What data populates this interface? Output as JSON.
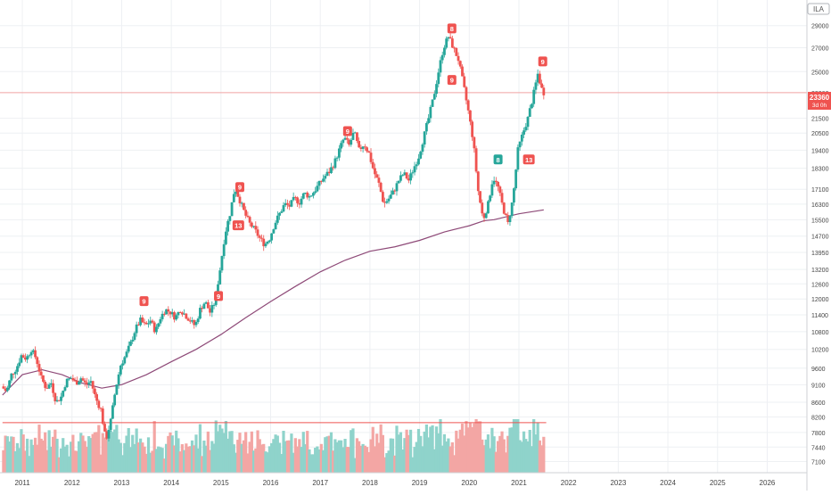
{
  "symbol": "ILA",
  "price_label": {
    "price": "23360",
    "countdown": "3d 0h"
  },
  "colors": {
    "up": "#26a69a",
    "down": "#ef5350",
    "ma": "#8e4a78",
    "grid": "#eef0f3",
    "axis_text": "#444444",
    "tick_line": "#9e9e9e"
  },
  "chart_data": {
    "type": "candlestick",
    "title": "",
    "x_axis": {
      "tick_labels": [
        "2011",
        "2012",
        "2013",
        "2014",
        "2015",
        "2016",
        "2017",
        "2018",
        "2019",
        "2020",
        "2021",
        "2022",
        "2023",
        "2024",
        "2025",
        "2026"
      ],
      "range": [
        2010.55,
        2026.8
      ]
    },
    "y_axis": {
      "scale": "log",
      "tick_labels": [
        "29000",
        "27000",
        "25000",
        "23360",
        "21500",
        "20500",
        "19400",
        "18300",
        "17100",
        "16300",
        "15500",
        "14700",
        "13950",
        "13200",
        "12600",
        "12000",
        "11400",
        "10800",
        "10200",
        "9600",
        "9100",
        "8600",
        "8200",
        "7800",
        "7440",
        "7100"
      ],
      "range": [
        6850,
        31500
      ]
    },
    "last_price": 23360,
    "support_line": 8050,
    "price_path": [
      [
        2010.6,
        9050
      ],
      [
        2010.7,
        8900
      ],
      [
        2010.8,
        9400
      ],
      [
        2010.9,
        9600
      ],
      [
        2011.0,
        10000
      ],
      [
        2011.1,
        9900
      ],
      [
        2011.2,
        10200
      ],
      [
        2011.3,
        9900
      ],
      [
        2011.4,
        9300
      ],
      [
        2011.5,
        9000
      ],
      [
        2011.6,
        9150
      ],
      [
        2011.7,
        8600
      ],
      [
        2011.8,
        8750
      ],
      [
        2011.9,
        9200
      ],
      [
        2012.0,
        9300
      ],
      [
        2012.1,
        9150
      ],
      [
        2012.2,
        9300
      ],
      [
        2012.3,
        9100
      ],
      [
        2012.4,
        9200
      ],
      [
        2012.5,
        8700
      ],
      [
        2012.6,
        8400
      ],
      [
        2012.7,
        7600
      ],
      [
        2012.8,
        8100
      ],
      [
        2012.9,
        9000
      ],
      [
        2013.0,
        9700
      ],
      [
        2013.1,
        10000
      ],
      [
        2013.2,
        10400
      ],
      [
        2013.3,
        10900
      ],
      [
        2013.4,
        11200
      ],
      [
        2013.5,
        11000
      ],
      [
        2013.6,
        11200
      ],
      [
        2013.7,
        10800
      ],
      [
        2013.8,
        11300
      ],
      [
        2013.9,
        11600
      ],
      [
        2014.0,
        11500
      ],
      [
        2014.1,
        11300
      ],
      [
        2014.2,
        11600
      ],
      [
        2014.3,
        11400
      ],
      [
        2014.5,
        11000
      ],
      [
        2014.6,
        11600
      ],
      [
        2014.7,
        11900
      ],
      [
        2014.8,
        11500
      ],
      [
        2014.9,
        11900
      ],
      [
        2015.0,
        13200
      ],
      [
        2015.1,
        14800
      ],
      [
        2015.2,
        15800
      ],
      [
        2015.3,
        17200
      ],
      [
        2015.4,
        16500
      ],
      [
        2015.5,
        15800
      ],
      [
        2015.6,
        15300
      ],
      [
        2015.7,
        15000
      ],
      [
        2015.8,
        14600
      ],
      [
        2015.9,
        14300
      ],
      [
        2016.0,
        14600
      ],
      [
        2016.1,
        15300
      ],
      [
        2016.2,
        15800
      ],
      [
        2016.3,
        16300
      ],
      [
        2016.4,
        16200
      ],
      [
        2016.5,
        16600
      ],
      [
        2016.6,
        16400
      ],
      [
        2016.7,
        16900
      ],
      [
        2016.8,
        16700
      ],
      [
        2016.9,
        17000
      ],
      [
        2017.0,
        17400
      ],
      [
        2017.1,
        17800
      ],
      [
        2017.2,
        18100
      ],
      [
        2017.3,
        18600
      ],
      [
        2017.4,
        19400
      ],
      [
        2017.5,
        20200
      ],
      [
        2017.6,
        19700
      ],
      [
        2017.7,
        20600
      ],
      [
        2017.8,
        19400
      ],
      [
        2017.9,
        19800
      ],
      [
        2018.0,
        19200
      ],
      [
        2018.1,
        18100
      ],
      [
        2018.2,
        17400
      ],
      [
        2018.3,
        16300
      ],
      [
        2018.4,
        16600
      ],
      [
        2018.5,
        17000
      ],
      [
        2018.6,
        17600
      ],
      [
        2018.7,
        18000
      ],
      [
        2018.8,
        17600
      ],
      [
        2018.9,
        18300
      ],
      [
        2019.0,
        19000
      ],
      [
        2019.1,
        20200
      ],
      [
        2019.2,
        21500
      ],
      [
        2019.3,
        23000
      ],
      [
        2019.4,
        25000
      ],
      [
        2019.5,
        27000
      ],
      [
        2019.6,
        28000
      ],
      [
        2019.7,
        27000
      ],
      [
        2019.8,
        26000
      ],
      [
        2019.9,
        24000
      ],
      [
        2020.0,
        22000
      ],
      [
        2020.1,
        20000
      ],
      [
        2020.2,
        17000
      ],
      [
        2020.3,
        15500
      ],
      [
        2020.4,
        16300
      ],
      [
        2020.5,
        17800
      ],
      [
        2020.6,
        17200
      ],
      [
        2020.7,
        16100
      ],
      [
        2020.8,
        15300
      ],
      [
        2020.9,
        16600
      ],
      [
        2021.0,
        19400
      ],
      [
        2021.1,
        20500
      ],
      [
        2021.2,
        21500
      ],
      [
        2021.3,
        23000
      ],
      [
        2021.4,
        24800
      ],
      [
        2021.5,
        23360
      ]
    ],
    "moving_average": [
      [
        2010.6,
        8800
      ],
      [
        2011.0,
        9400
      ],
      [
        2011.4,
        9550
      ],
      [
        2011.8,
        9400
      ],
      [
        2012.2,
        9150
      ],
      [
        2012.6,
        9000
      ],
      [
        2013.0,
        9100
      ],
      [
        2013.5,
        9400
      ],
      [
        2014.0,
        9800
      ],
      [
        2014.5,
        10200
      ],
      [
        2015.0,
        10700
      ],
      [
        2015.5,
        11300
      ],
      [
        2016.0,
        11900
      ],
      [
        2016.5,
        12500
      ],
      [
        2017.0,
        13100
      ],
      [
        2017.5,
        13600
      ],
      [
        2018.0,
        14000
      ],
      [
        2018.5,
        14200
      ],
      [
        2019.0,
        14500
      ],
      [
        2019.5,
        14900
      ],
      [
        2020.0,
        15200
      ],
      [
        2020.3,
        15450
      ],
      [
        2020.5,
        15500
      ],
      [
        2021.0,
        15800
      ],
      [
        2021.5,
        16000
      ]
    ],
    "sequential_markers": [
      {
        "label": "9",
        "x": 2013.45,
        "y": 11900,
        "type": "sell"
      },
      {
        "label": "13",
        "x": 2015.35,
        "y": 15200,
        "type": "sell"
      },
      {
        "label": "9",
        "x": 2015.38,
        "y": 17200,
        "type": "sell"
      },
      {
        "label": "9",
        "x": 2014.95,
        "y": 12100,
        "type": "sell"
      },
      {
        "label": "9",
        "x": 2017.55,
        "y": 20600,
        "type": "sell"
      },
      {
        "label": "8",
        "x": 2019.65,
        "y": 28700,
        "type": "sell"
      },
      {
        "label": "9",
        "x": 2019.65,
        "y": 24300,
        "type": "sell"
      },
      {
        "label": "8",
        "x": 2020.58,
        "y": 18800,
        "type": "buy"
      },
      {
        "label": "13",
        "x": 2021.2,
        "y": 18800,
        "type": "sell"
      },
      {
        "label": "9",
        "x": 2021.48,
        "y": 25800,
        "type": "sell"
      }
    ],
    "volume_max": 100
  }
}
